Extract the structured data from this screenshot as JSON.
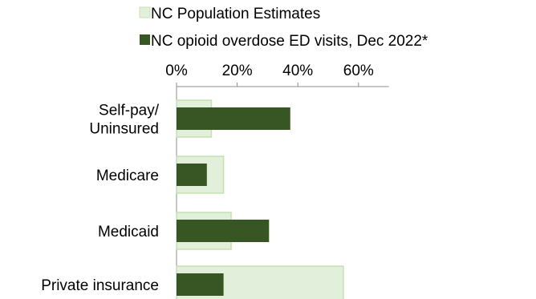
{
  "chart_data": {
    "type": "bar",
    "orientation": "horizontal",
    "title": "",
    "xlabel": "",
    "ylabel": "",
    "xlim": [
      0,
      70
    ],
    "ticks": [
      0,
      20,
      40,
      60
    ],
    "tick_labels": [
      "0%",
      "20%",
      "40%",
      "60%"
    ],
    "axis_position": "top",
    "legend_position": "top",
    "grid": false,
    "categories": [
      [
        "Self-pay/",
        "Uninsured"
      ],
      [
        "Medicare"
      ],
      [
        "Medicaid"
      ],
      [
        "Private insurance"
      ]
    ],
    "series": [
      {
        "name": "NC Population Estimates",
        "color": "#e2efda",
        "stroke": "#c5e0b4",
        "values": [
          11.5,
          15.5,
          18,
          55
        ]
      },
      {
        "name": "NC opioid overdose ED visits, Dec 2022*",
        "color": "#375623",
        "stroke": "#375623",
        "values": [
          37.5,
          10,
          30.5,
          15.5
        ]
      }
    ]
  }
}
